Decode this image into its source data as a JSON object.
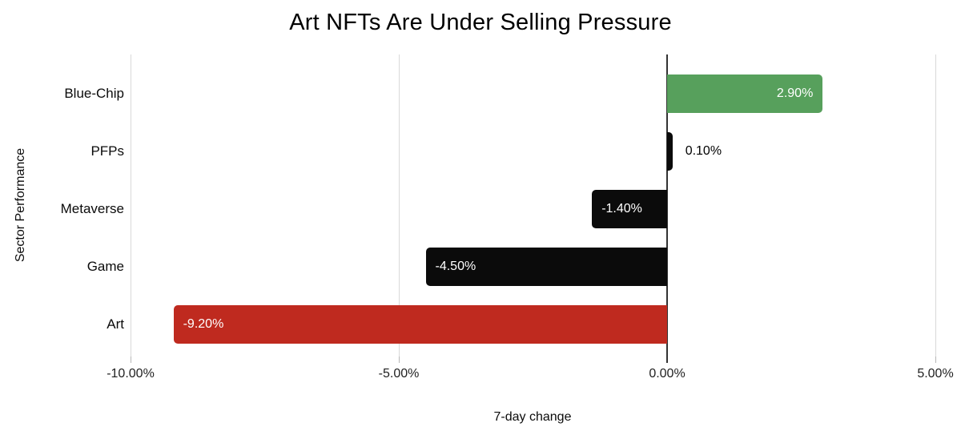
{
  "chart_data": {
    "type": "bar",
    "orientation": "horizontal",
    "title": "Art NFTs Are Under Selling Pressure",
    "xlabel": "7-day change",
    "ylabel": "Sector Performance",
    "categories": [
      "Blue-Chip",
      "PFPs",
      "Metaverse",
      "Game",
      "Art"
    ],
    "values": [
      2.9,
      0.1,
      -1.4,
      -4.5,
      -9.2
    ],
    "value_labels": [
      "2.90%",
      "0.10%",
      "-1.40%",
      "-4.50%",
      "-9.20%"
    ],
    "bar_colors": [
      "#57a05c",
      "#0b0b0b",
      "#0b0b0b",
      "#0b0b0b",
      "#bf2a1f"
    ],
    "xticks": [
      {
        "value": -10,
        "label": "-10.00%"
      },
      {
        "value": -5,
        "label": "-5.00%"
      },
      {
        "value": 0,
        "label": "0.00%"
      },
      {
        "value": 5,
        "label": "5.00%"
      }
    ],
    "xlim": [
      -10.2,
      5.3
    ],
    "grid": true,
    "legend": false,
    "colors": {
      "background": "#ffffff",
      "gridline": "#d9d9d9",
      "zero_axis_line": "#333333",
      "label_inside_bar": "#ffffff",
      "label_outside_bar": "#000000",
      "text": "#0b0b0b"
    }
  }
}
